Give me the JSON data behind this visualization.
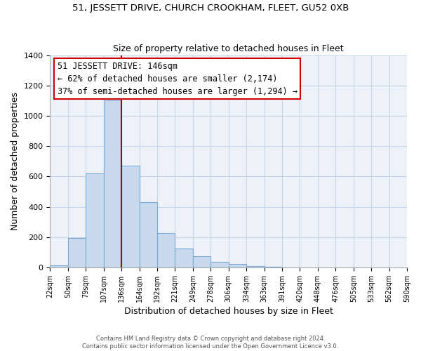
{
  "title1": "51, JESSETT DRIVE, CHURCH CROOKHAM, FLEET, GU52 0XB",
  "title2": "Size of property relative to detached houses in Fleet",
  "xlabel": "Distribution of detached houses by size in Fleet",
  "ylabel": "Number of detached properties",
  "bar_values": [
    15,
    195,
    620,
    1100,
    670,
    430,
    225,
    125,
    75,
    35,
    25,
    10,
    5,
    0,
    0,
    0,
    0,
    0,
    0
  ],
  "bin_labels": [
    "22sqm",
    "50sqm",
    "79sqm",
    "107sqm",
    "136sqm",
    "164sqm",
    "192sqm",
    "221sqm",
    "249sqm",
    "278sqm",
    "306sqm",
    "334sqm",
    "363sqm",
    "391sqm",
    "420sqm",
    "448sqm",
    "476sqm",
    "505sqm",
    "533sqm",
    "562sqm",
    "590sqm"
  ],
  "bar_color": "#c8d9ee",
  "bar_edge_color": "#7aaad4",
  "vline_x_index": 4,
  "vline_color": "#aa0000",
  "annotation_text": "51 JESSETT DRIVE: 146sqm\n← 62% of detached houses are smaller (2,174)\n37% of semi-detached houses are larger (1,294) →",
  "annotation_box_color": "#ffffff",
  "annotation_box_edge": "#cc0000",
  "ylim": [
    0,
    1400
  ],
  "yticks": [
    0,
    200,
    400,
    600,
    800,
    1000,
    1200,
    1400
  ],
  "footer1": "Contains HM Land Registry data © Crown copyright and database right 2024.",
  "footer2": "Contains public sector information licensed under the Open Government Licence v3.0.",
  "background_color": "#ffffff",
  "grid_color": "#c8d4e8"
}
